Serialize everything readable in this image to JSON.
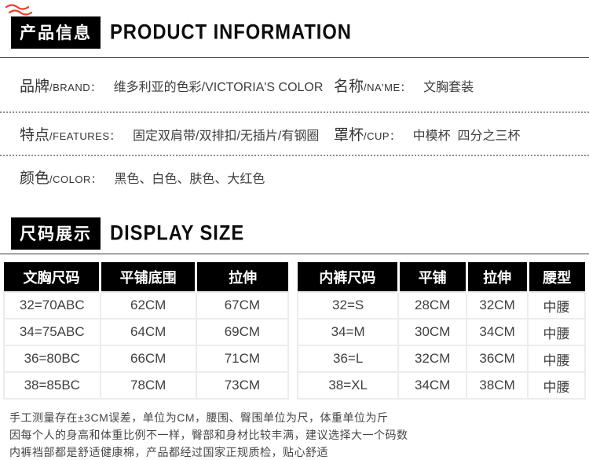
{
  "colors": {
    "header_bg": "#000000",
    "header_text": "#ffffff",
    "accent_red": "#e8402d",
    "body_text": "#3c3c3c",
    "grid_line": "#ececec"
  },
  "icons": {
    "top_left_mark": "red-scribble"
  },
  "product_section": {
    "badge": "产品信息",
    "title": "PRODUCT INFORMATION",
    "fields": {
      "brand": {
        "zh": "品牌",
        "en": "/BRAND：",
        "value": "维多利亚的色彩/VICTORIA'S COLOR"
      },
      "name": {
        "zh": "名称",
        "en": "/NA'ME：",
        "value": "文胸套装"
      },
      "features": {
        "zh": "特点",
        "en": "/FEATURES：",
        "value": "固定双肩带/双排扣/无插片/有钢圈"
      },
      "cup": {
        "zh": "罩杯",
        "en": "/CUP：",
        "value": "中模杯  四分之三杯"
      },
      "color": {
        "zh": "颜色",
        "en": "/COLOR：",
        "value": "黑色、白色、肤色、大红色"
      }
    }
  },
  "size_section": {
    "badge": "尺码展示",
    "title": "DISPLAY SIZE",
    "bra_table": {
      "headers": [
        "文胸尺码",
        "平铺底围",
        "拉伸"
      ],
      "rows": [
        [
          "32=70ABC",
          "62CM",
          "67CM"
        ],
        [
          "34=75ABC",
          "64CM",
          "69CM"
        ],
        [
          "36=80BC",
          "66CM",
          "71CM"
        ],
        [
          "38=85BC",
          "78CM",
          "73CM"
        ]
      ]
    },
    "panty_table": {
      "headers": [
        "内裤尺码",
        "平铺",
        "拉伸",
        "腰型"
      ],
      "rows": [
        [
          "32=S",
          "28CM",
          "32CM",
          "中腰"
        ],
        [
          "34=M",
          "30CM",
          "34CM",
          "中腰"
        ],
        [
          "36=L",
          "32CM",
          "36CM",
          "中腰"
        ],
        [
          "38=XL",
          "34CM",
          "38CM",
          "中腰"
        ]
      ]
    }
  },
  "notes": {
    "line1": "手工测量存在±3CM误差，单位为CM，腰围、臀围单位为尺，体重单位为斤",
    "line2": "因每个人的身高和体重比例不一样，臀部和身材比较丰满，建议选择大一个码数",
    "line3": "内裤裆部都是舒适健康棉，产品都经过国家正规质检，贴心舒适"
  }
}
